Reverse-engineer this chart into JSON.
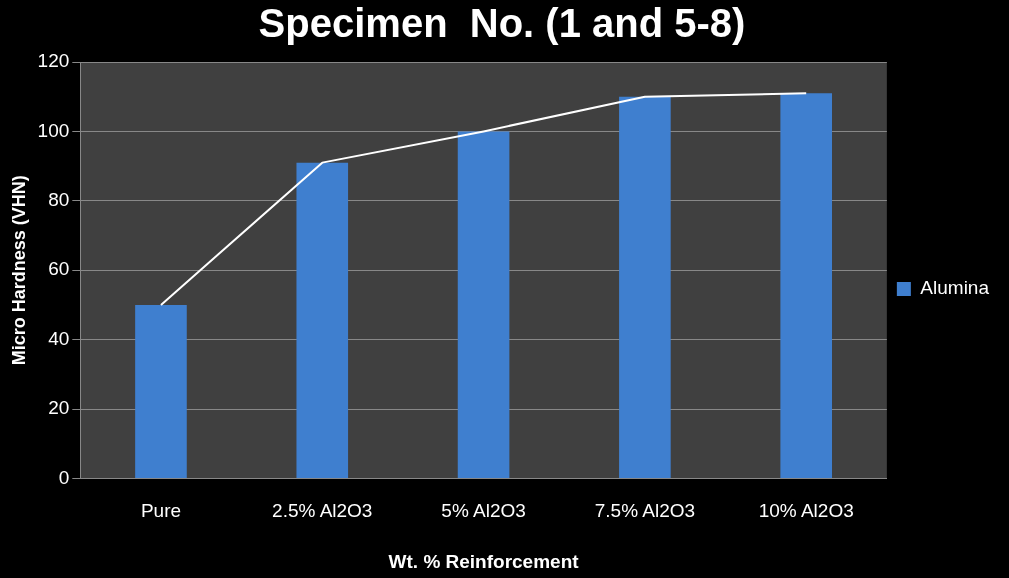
{
  "chart_data": {
    "type": "bar",
    "title": "Specimen  No. (1 and 5-8)",
    "xlabel": "Wt. % Reinforcement",
    "ylabel": "Micro Hardness (VHN)",
    "categories": [
      "Pure",
      "2.5% Al2O3",
      "5% Al2O3",
      "7.5% Al2O3",
      "10% Al2O3"
    ],
    "series": [
      {
        "name": "Alumina",
        "color": "#3f7fcf",
        "values": [
          50,
          91,
          100,
          110,
          111
        ]
      },
      {
        "type": "line",
        "color": "#ffffff",
        "values": [
          50,
          91,
          100,
          110,
          111
        ]
      }
    ],
    "ylim": [
      0,
      120
    ],
    "yticks": [
      0,
      20,
      40,
      60,
      80,
      100,
      120
    ],
    "grid": "y",
    "legend": "right"
  }
}
